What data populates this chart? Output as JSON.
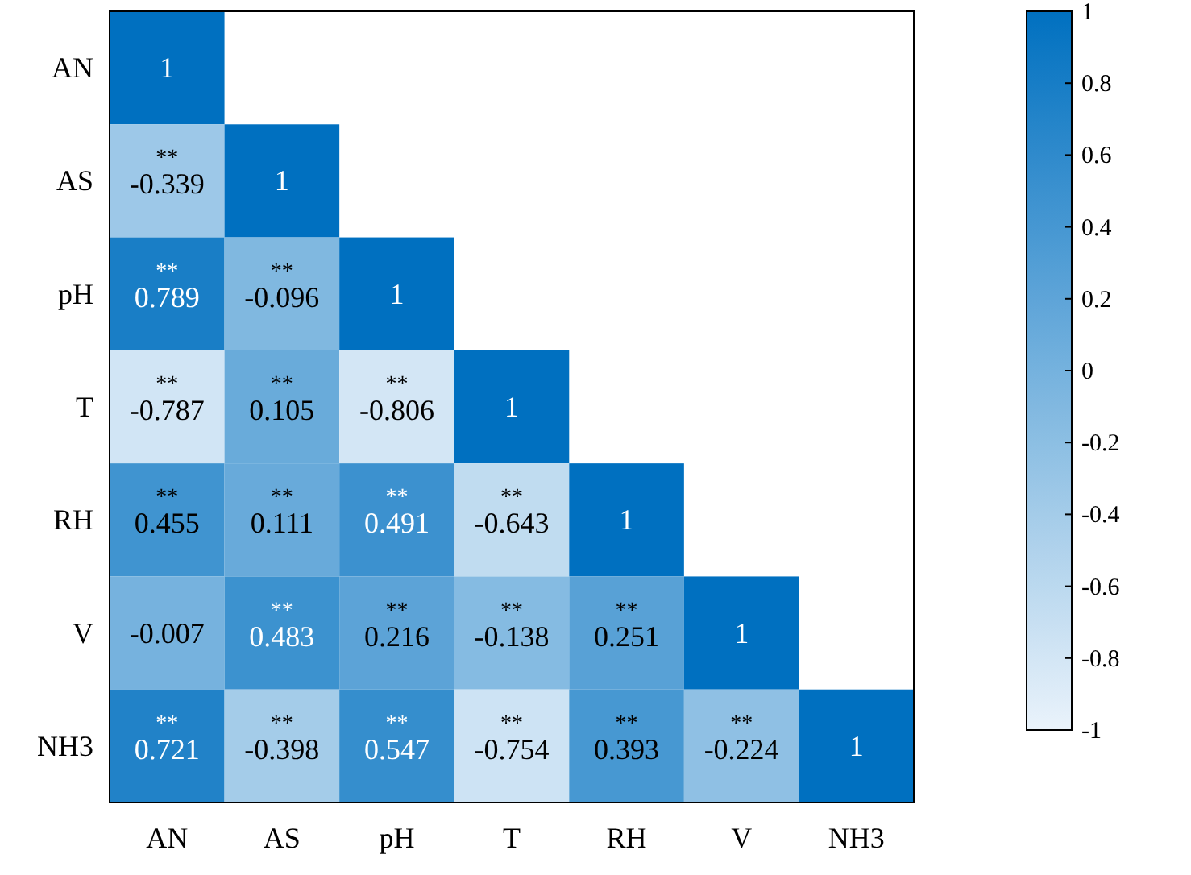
{
  "chart_data": {
    "type": "heatmap",
    "categories": [
      "AN",
      "AS",
      "pH",
      "T",
      "RH",
      "V",
      "NH3"
    ],
    "y_categories": [
      "AN",
      "AS",
      "pH",
      "T",
      "RH",
      "V",
      "NH3"
    ],
    "cells": [
      [
        1,
        null,
        null,
        null,
        null,
        null,
        null
      ],
      [
        -0.339,
        1,
        null,
        null,
        null,
        null,
        null
      ],
      [
        0.789,
        -0.096,
        1,
        null,
        null,
        null,
        null
      ],
      [
        -0.787,
        0.105,
        -0.806,
        1,
        null,
        null,
        null
      ],
      [
        0.455,
        0.111,
        0.491,
        -0.643,
        1,
        null,
        null
      ],
      [
        -0.007,
        0.483,
        0.216,
        -0.138,
        0.251,
        1,
        null
      ],
      [
        0.721,
        -0.398,
        0.547,
        -0.754,
        0.393,
        -0.224,
        1
      ]
    ],
    "cell_labels": [
      [
        "1",
        null,
        null,
        null,
        null,
        null,
        null
      ],
      [
        "**\n-0.339",
        "1",
        null,
        null,
        null,
        null,
        null
      ],
      [
        "**\n0.789",
        "**\n-0.096",
        "1",
        null,
        null,
        null,
        null
      ],
      [
        "**\n-0.787",
        "**\n0.105",
        "**\n-0.806",
        "1",
        null,
        null,
        null
      ],
      [
        "**\n0.455",
        "**\n0.111",
        "**\n0.491",
        "**\n-0.643",
        "1",
        null,
        null
      ],
      [
        "-0.007",
        "**\n0.483",
        "**\n0.216",
        "**\n-0.138",
        "**\n0.251",
        "1",
        null
      ],
      [
        "**\n0.721",
        "**\n-0.398",
        "**\n0.547",
        "**\n-0.754",
        "**\n0.393",
        "**\n-0.224",
        "1"
      ]
    ],
    "clim": [
      -1,
      1
    ],
    "cticks": [
      1,
      0.8,
      0.6,
      0.4,
      0.2,
      0,
      -0.2,
      -0.4,
      -0.6,
      -0.8,
      -1
    ]
  }
}
